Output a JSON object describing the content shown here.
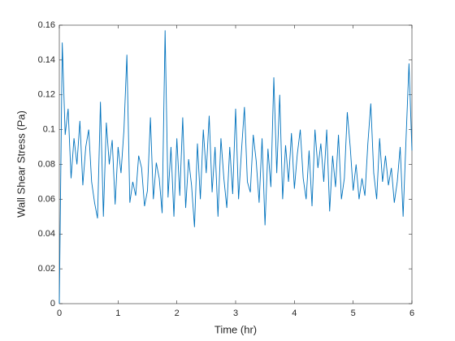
{
  "chart_data": {
    "type": "line",
    "xlabel": "Time (hr)",
    "ylabel": "Wall Shear Stress (Pa)",
    "color": "#0072bd",
    "xlim": [
      0,
      6
    ],
    "xticks": [
      0,
      1,
      2,
      3,
      4,
      5,
      6
    ],
    "ylim": [
      0,
      0.16
    ],
    "yticks": [
      0,
      0.02,
      0.04,
      0.06,
      0.08,
      0.1,
      0.12,
      0.14,
      0.16
    ],
    "x": [
      0,
      0.05,
      0.1,
      0.15,
      0.2,
      0.25,
      0.3,
      0.35,
      0.4,
      0.45,
      0.5,
      0.55,
      0.6,
      0.65,
      0.7,
      0.75,
      0.8,
      0.85,
      0.9,
      0.95,
      1,
      1.05,
      1.1,
      1.15,
      1.2,
      1.25,
      1.3,
      1.35,
      1.4,
      1.45,
      1.5,
      1.55,
      1.6,
      1.65,
      1.7,
      1.75,
      1.8,
      1.85,
      1.9,
      1.95,
      2,
      2.05,
      2.1,
      2.15,
      2.2,
      2.25,
      2.3,
      2.35,
      2.4,
      2.45,
      2.5,
      2.55,
      2.6,
      2.65,
      2.7,
      2.75,
      2.8,
      2.85,
      2.9,
      2.95,
      3,
      3.05,
      3.1,
      3.15,
      3.2,
      3.25,
      3.3,
      3.35,
      3.4,
      3.45,
      3.5,
      3.55,
      3.6,
      3.65,
      3.7,
      3.75,
      3.8,
      3.85,
      3.9,
      3.95,
      4,
      4.05,
      4.1,
      4.15,
      4.2,
      4.25,
      4.3,
      4.35,
      4.4,
      4.45,
      4.5,
      4.55,
      4.6,
      4.65,
      4.7,
      4.75,
      4.8,
      4.85,
      4.9,
      4.95,
      5,
      5.05,
      5.1,
      5.15,
      5.2,
      5.25,
      5.3,
      5.35,
      5.4,
      5.45,
      5.5,
      5.55,
      5.6,
      5.65,
      5.7,
      5.75,
      5.8,
      5.85,
      5.9,
      5.95,
      6
    ],
    "values": [
      0,
      0.15,
      0.097,
      0.112,
      0.072,
      0.095,
      0.08,
      0.105,
      0.068,
      0.09,
      0.1,
      0.07,
      0.058,
      0.049,
      0.116,
      0.05,
      0.104,
      0.08,
      0.094,
      0.057,
      0.09,
      0.075,
      0.1,
      0.143,
      0.058,
      0.07,
      0.062,
      0.085,
      0.078,
      0.056,
      0.065,
      0.107,
      0.06,
      0.081,
      0.072,
      0.052,
      0.157,
      0.061,
      0.09,
      0.05,
      0.095,
      0.062,
      0.107,
      0.055,
      0.083,
      0.068,
      0.044,
      0.092,
      0.06,
      0.1,
      0.075,
      0.108,
      0.064,
      0.09,
      0.05,
      0.095,
      0.072,
      0.055,
      0.09,
      0.063,
      0.112,
      0.06,
      0.088,
      0.113,
      0.07,
      0.064,
      0.097,
      0.082,
      0.058,
      0.095,
      0.045,
      0.089,
      0.067,
      0.13,
      0.075,
      0.12,
      0.06,
      0.091,
      0.07,
      0.098,
      0.066,
      0.086,
      0.1,
      0.072,
      0.06,
      0.088,
      0.056,
      0.1,
      0.078,
      0.092,
      0.07,
      0.1,
      0.053,
      0.085,
      0.067,
      0.097,
      0.06,
      0.072,
      0.11,
      0.09,
      0.065,
      0.08,
      0.06,
      0.072,
      0.062,
      0.092,
      0.115,
      0.075,
      0.06,
      0.095,
      0.07,
      0.085,
      0.068,
      0.078,
      0.058,
      0.07,
      0.09,
      0.05,
      0.095,
      0.138,
      0.088
    ]
  }
}
